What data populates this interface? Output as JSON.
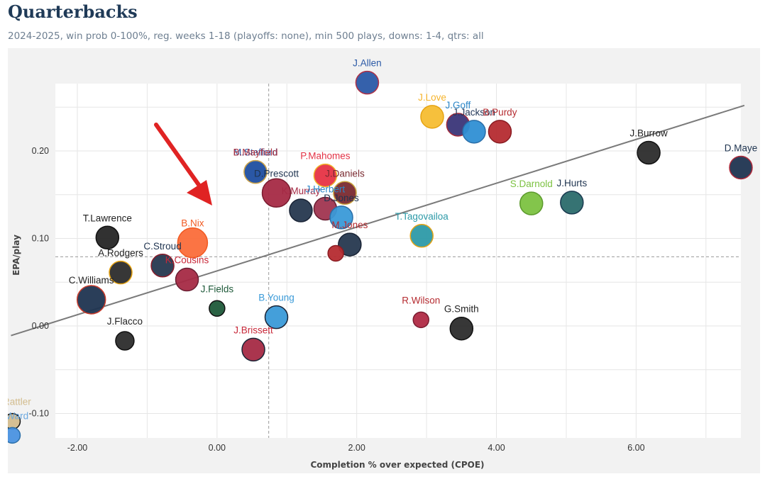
{
  "header": {
    "title": "Quarterbacks",
    "subtitle": "2024-2025, win prob 0-100%, reg. weeks 1-18 (playoffs: none), min 500 plays, downs: 1-4, qtrs: all"
  },
  "chart_data": {
    "type": "scatter",
    "xlabel": "Completion % over expected (CPOE)",
    "ylabel": "EPA/play",
    "xlim": [
      -2.95,
      7.55
    ],
    "ylim": [
      -0.125,
      0.28
    ],
    "x_ticks": [
      "-2.00",
      "0.00",
      "2.00",
      "4.00",
      "6.00"
    ],
    "y_ticks": [
      "-0.10",
      "0.00",
      "0.10",
      "0.20"
    ],
    "grid": true,
    "reference_lines": {
      "x": 0.74,
      "y": 0.079
    },
    "trend_line": {
      "x1": -2.95,
      "y1": -0.011,
      "x2": 7.55,
      "y2": 0.252
    },
    "points": [
      {
        "name": "J.Allen",
        "x": 2.15,
        "y": 0.278,
        "color": "#2a59a6",
        "edge": "#b03045",
        "label_color": "#2a59a6"
      },
      {
        "name": "J.Love",
        "x": 3.08,
        "y": 0.239,
        "color": "#f6bd32",
        "edge": "#e6a312",
        "label_color": "#f6b42c"
      },
      {
        "name": "J.Goff",
        "x": 3.45,
        "y": 0.23,
        "color": "#3a3578",
        "edge": "#a32a3a",
        "label_color": "#2a86c8"
      },
      {
        "name": "J.Jackson",
        "x": 3.68,
        "y": 0.222,
        "color": "#2f8fd4",
        "edge": "#2a6ea8",
        "label_color": "#24395a"
      },
      {
        "name": "B.Purdy",
        "x": 4.05,
        "y": 0.222,
        "color": "#b52b30",
        "edge": "#8a1c22",
        "label_color": "#b52b30"
      },
      {
        "name": "J.Burrow",
        "x": 6.18,
        "y": 0.198,
        "color": "#2c2c2c",
        "edge": "#111111",
        "label_color": "#222222"
      },
      {
        "name": "D.Maye",
        "x": 7.5,
        "y": 0.181,
        "color": "#1f3450",
        "edge": "#b02a3a",
        "label_color": "#1f3450"
      },
      {
        "name": "M.Stafford",
        "x": 0.55,
        "y": 0.176,
        "color": "#2a56a4",
        "edge": "#caa24a",
        "label_color": "#2a56a4"
      },
      {
        "name": "B.Mayfield",
        "x": 0.55,
        "y": 0.176,
        "color": "#2a56a4",
        "edge": "#caa24a",
        "label_color": "#b0323f"
      },
      {
        "name": "P.Mahomes",
        "x": 1.55,
        "y": 0.172,
        "color": "#e63345",
        "edge": "#f0b52a",
        "label_color": "#e33245"
      },
      {
        "name": "J.Daniels",
        "x": 1.83,
        "y": 0.152,
        "color": "#7a2a30",
        "edge": "#c8a23a",
        "label_color": "#7a2a30"
      },
      {
        "name": "D.Prescott",
        "x": 0.85,
        "y": 0.152,
        "color": "#a52a45",
        "edge": "#7a1c30",
        "label_color": "#1f3450"
      },
      {
        "name": "K.Murray",
        "x": 1.2,
        "y": 0.132,
        "color": "#26384f",
        "edge": "#1a2436",
        "label_color": "#a52a45"
      },
      {
        "name": "J.Herbert",
        "x": 1.55,
        "y": 0.134,
        "color": "#a03550",
        "edge": "#6a1f33",
        "label_color": "#2a86c8"
      },
      {
        "name": "D.Jones",
        "x": 1.78,
        "y": 0.124,
        "color": "#3a9ad8",
        "edge": "#2a6ea8",
        "label_color": "#1f3450"
      },
      {
        "name": "J.Hurts",
        "x": 5.08,
        "y": 0.141,
        "color": "#2b6c6c",
        "edge": "#1a3a50",
        "label_color": "#1f3450"
      },
      {
        "name": "S.Darnold",
        "x": 4.5,
        "y": 0.14,
        "color": "#7cc241",
        "edge": "#5c9a2c",
        "label_color": "#7cc241"
      },
      {
        "name": "T.Tagovailoa",
        "x": 2.93,
        "y": 0.103,
        "color": "#2d9aa8",
        "edge": "#e6a312",
        "label_color": "#2d9aa8"
      },
      {
        "name": "M.Jones",
        "x": 1.9,
        "y": 0.093,
        "color": "#26384f",
        "edge": "#1a2436",
        "label_color": "#b52b30"
      },
      {
        "name": "",
        "x": 1.7,
        "y": 0.083,
        "color": "#b52b30",
        "edge": "#8a1c22",
        "label_color": "#b52b30"
      },
      {
        "name": "T.Lawrence",
        "x": -1.57,
        "y": 0.101,
        "color": "#262626",
        "edge": "#111111",
        "label_color": "#222222"
      },
      {
        "name": "B.Nix",
        "x": -0.35,
        "y": 0.095,
        "color": "#fb6d3a",
        "edge": "#f15a22",
        "label_color": "#f15a22"
      },
      {
        "name": "A.Rodgers",
        "x": -1.38,
        "y": 0.061,
        "color": "#2c2c2c",
        "edge": "#e6a312",
        "label_color": "#222222"
      },
      {
        "name": "C.Stroud",
        "x": -0.78,
        "y": 0.069,
        "color": "#26384f",
        "edge": "#8a1c2a",
        "label_color": "#1f3450"
      },
      {
        "name": "K.Cousins",
        "x": -0.43,
        "y": 0.053,
        "color": "#a52a45",
        "edge": "#6a1f33",
        "label_color": "#c8293a"
      },
      {
        "name": "C.Williams",
        "x": -1.8,
        "y": 0.03,
        "color": "#1f3450",
        "edge": "#c83a2a",
        "label_color": "#222222"
      },
      {
        "name": "J.Fields",
        "x": 0.0,
        "y": 0.02,
        "color": "#1f5a3a",
        "edge": "#111111",
        "label_color": "#1f5a3a"
      },
      {
        "name": "B.Young",
        "x": 0.85,
        "y": 0.01,
        "color": "#3a9ad8",
        "edge": "#1a2436",
        "label_color": "#3a9ad8"
      },
      {
        "name": "J.Flacco",
        "x": -1.32,
        "y": -0.017,
        "color": "#2c2c2c",
        "edge": "#111111",
        "label_color": "#222222"
      },
      {
        "name": "J.Brissett",
        "x": 0.52,
        "y": -0.027,
        "color": "#a52a45",
        "edge": "#1a2436",
        "label_color": "#c8293a"
      },
      {
        "name": "G.Smith",
        "x": 3.5,
        "y": -0.003,
        "color": "#2c2c2c",
        "edge": "#111111",
        "label_color": "#222222"
      },
      {
        "name": "R.Wilson",
        "x": 2.92,
        "y": 0.007,
        "color": "#b02a45",
        "edge": "#7a1c30",
        "label_color": "#b52b30"
      },
      {
        "name": "S.Rattler",
        "x": -2.93,
        "y": -0.109,
        "color": "#d3bc8d",
        "edge": "#111111",
        "label_color": "#d3bc8d"
      },
      {
        "name": "C.Ward",
        "x": -2.93,
        "y": -0.125,
        "color": "#4a92e0",
        "edge": "#2a6ea8",
        "label_color": "#6aa8e0"
      }
    ]
  }
}
